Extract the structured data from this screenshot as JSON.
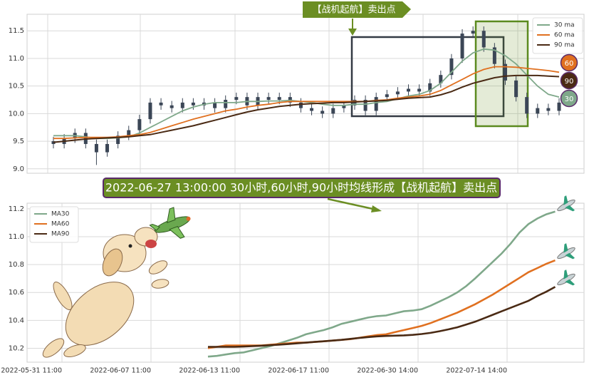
{
  "chart_data": [
    {
      "type": "candlestick",
      "open": [
        9.5,
        9.45,
        9.55,
        9.65,
        9.45,
        9.3,
        9.45,
        9.6,
        9.7,
        9.9,
        10.2,
        10.15,
        10.1,
        10.2,
        10.15,
        10.2,
        10.1,
        10.25,
        10.3,
        10.15,
        10.3,
        10.25,
        10.3,
        10.2,
        10.1,
        10.05,
        10.0,
        10.1,
        10.15,
        10.25,
        10.05,
        10.3,
        10.35,
        10.4,
        10.45,
        10.4,
        10.55,
        10.7,
        11.0,
        11.45,
        11.5,
        11.2,
        10.9,
        10.6,
        10.3,
        10.0,
        10.1,
        10.05
      ],
      "high": [
        9.58,
        9.63,
        9.73,
        9.73,
        9.53,
        9.53,
        9.68,
        9.78,
        9.98,
        10.28,
        10.28,
        10.23,
        10.28,
        10.28,
        10.28,
        10.28,
        10.33,
        10.38,
        10.38,
        10.38,
        10.38,
        10.38,
        10.38,
        10.28,
        10.18,
        10.13,
        10.18,
        10.23,
        10.33,
        10.33,
        10.38,
        10.43,
        10.48,
        10.53,
        10.53,
        10.63,
        10.78,
        11.08,
        11.53,
        11.58,
        11.58,
        11.28,
        10.98,
        10.68,
        10.38,
        10.18,
        10.18,
        10.28
      ],
      "low": [
        9.37,
        9.37,
        9.47,
        9.37,
        9.07,
        9.22,
        9.37,
        9.52,
        9.62,
        9.82,
        10.07,
        10.02,
        10.02,
        10.07,
        10.07,
        10.02,
        10.02,
        10.17,
        10.07,
        10.07,
        10.17,
        10.17,
        10.12,
        10.02,
        9.97,
        9.92,
        9.92,
        10.02,
        10.07,
        9.97,
        9.97,
        10.22,
        10.27,
        10.32,
        10.32,
        10.32,
        10.47,
        10.62,
        10.92,
        11.37,
        11.12,
        10.82,
        10.52,
        10.22,
        9.92,
        9.92,
        9.97,
        9.97
      ],
      "close": [
        9.45,
        9.55,
        9.65,
        9.45,
        9.3,
        9.45,
        9.6,
        9.7,
        9.9,
        10.2,
        10.15,
        10.1,
        10.2,
        10.15,
        10.2,
        10.1,
        10.25,
        10.3,
        10.15,
        10.3,
        10.25,
        10.3,
        10.2,
        10.1,
        10.05,
        10.0,
        10.1,
        10.15,
        10.25,
        10.05,
        10.3,
        10.35,
        10.4,
        10.45,
        10.4,
        10.55,
        10.7,
        11.0,
        11.45,
        11.5,
        11.2,
        10.9,
        10.6,
        10.3,
        10.0,
        10.1,
        10.05,
        10.2
      ],
      "candle_color": "#3b4656",
      "series": [
        {
          "name": "30 ma",
          "badge": "30",
          "color": "#7fa88a",
          "values": [
            9.6,
            9.6,
            9.6,
            9.58,
            9.55,
            9.55,
            9.56,
            9.58,
            9.65,
            9.75,
            9.85,
            9.95,
            10.05,
            10.12,
            10.17,
            10.2,
            10.2,
            10.2,
            10.22,
            10.22,
            10.23,
            10.23,
            10.24,
            10.22,
            10.2,
            10.17,
            10.15,
            10.15,
            10.17,
            10.17,
            10.2,
            10.22,
            10.27,
            10.32,
            10.35,
            10.42,
            10.55,
            10.75,
            10.95,
            11.1,
            11.17,
            11.15,
            11.05,
            10.9,
            10.7,
            10.5,
            10.35,
            10.3
          ]
        },
        {
          "name": "60 ma",
          "badge": "60",
          "color": "#e07020",
          "values": [
            9.55,
            9.55,
            9.56,
            9.57,
            9.57,
            9.57,
            9.58,
            9.6,
            9.62,
            9.66,
            9.72,
            9.78,
            9.84,
            9.9,
            9.95,
            10.0,
            10.05,
            10.08,
            10.12,
            10.15,
            10.17,
            10.2,
            10.22,
            10.22,
            10.22,
            10.22,
            10.22,
            10.22,
            10.22,
            10.22,
            10.24,
            10.25,
            10.28,
            10.3,
            10.32,
            10.35,
            10.42,
            10.52,
            10.62,
            10.72,
            10.8,
            10.85,
            10.85,
            10.84,
            10.82,
            10.8,
            10.78,
            10.75
          ]
        },
        {
          "name": "90 ma",
          "badge": "90",
          "color": "#4a2a14",
          "values": [
            9.48,
            9.5,
            9.52,
            9.54,
            9.55,
            9.56,
            9.57,
            9.58,
            9.6,
            9.62,
            9.66,
            9.7,
            9.74,
            9.78,
            9.83,
            9.88,
            9.93,
            9.98,
            10.03,
            10.07,
            10.1,
            10.13,
            10.15,
            10.17,
            10.18,
            10.19,
            10.2,
            10.2,
            10.21,
            10.22,
            10.23,
            10.24,
            10.26,
            10.28,
            10.29,
            10.3,
            10.34,
            10.4,
            10.48,
            10.55,
            10.6,
            10.65,
            10.68,
            10.69,
            10.69,
            10.69,
            10.68,
            10.67
          ]
        }
      ],
      "ylim": [
        8.92,
        11.8
      ],
      "yticks": [
        {
          "value": 9.0,
          "label": "9.0"
        },
        9.5,
        {
          "value": 10.0,
          "label": "10.0"
        },
        10.5,
        {
          "value": 11.0,
          "label": "11.0"
        },
        11.5
      ],
      "grid": true,
      "legend": "upper right",
      "annotation": "【战机起航】卖出点"
    },
    {
      "type": "line",
      "x": [
        8.2,
        8.7,
        9.2,
        9.7,
        10.2,
        10.7,
        11.2,
        11.7,
        12.2,
        12.7,
        13.2,
        13.7,
        14.2,
        14.7,
        15.2,
        15.7,
        16.2,
        16.7,
        17.2,
        17.7,
        18.2,
        18.7,
        19.2,
        19.7,
        20.2,
        20.7,
        21.2,
        21.7,
        22.2,
        22.7,
        23.2,
        23.7,
        24.2,
        24.7,
        25.2,
        25.7,
        26.2,
        26.7,
        27.2,
        27.7
      ],
      "series": [
        {
          "name": "MA30",
          "color": "#7fa88a",
          "values": [
            10.14,
            10.145,
            10.155,
            10.165,
            10.17,
            10.185,
            10.2,
            10.215,
            10.235,
            10.255,
            10.275,
            10.3,
            10.315,
            10.33,
            10.35,
            10.375,
            10.39,
            10.405,
            10.42,
            10.43,
            10.435,
            10.45,
            10.465,
            10.47,
            10.48,
            10.505,
            10.535,
            10.565,
            10.6,
            10.645,
            10.7,
            10.76,
            10.82,
            10.88,
            10.95,
            11.03,
            11.09,
            11.13,
            11.16,
            11.18
          ]
        },
        {
          "name": "MA60",
          "color": "#e07020",
          "values": [
            10.2,
            10.21,
            10.22,
            10.22,
            10.22,
            10.22,
            10.22,
            10.225,
            10.23,
            10.235,
            10.24,
            10.24,
            10.245,
            10.25,
            10.255,
            10.26,
            10.265,
            10.275,
            10.285,
            10.295,
            10.3,
            10.315,
            10.33,
            10.345,
            10.36,
            10.38,
            10.405,
            10.43,
            10.455,
            10.485,
            10.515,
            10.55,
            10.585,
            10.625,
            10.665,
            10.705,
            10.745,
            10.775,
            10.805,
            10.83
          ]
        },
        {
          "name": "MA90",
          "color": "#4a2a14",
          "values": [
            10.21,
            10.21,
            10.21,
            10.21,
            10.212,
            10.215,
            10.218,
            10.222,
            10.226,
            10.23,
            10.235,
            10.24,
            10.245,
            10.25,
            10.255,
            10.26,
            10.267,
            10.274,
            10.28,
            10.285,
            10.288,
            10.29,
            10.292,
            10.296,
            10.302,
            10.31,
            10.322,
            10.335,
            10.35,
            10.37,
            10.39,
            10.415,
            10.44,
            10.465,
            10.49,
            10.515,
            10.54,
            10.575,
            10.605,
            10.64
          ]
        }
      ],
      "xlim": [
        -1.96,
        29.32
      ],
      "xticks": [
        {
          "value": 0,
          "label": "2022-05-31 11:00"
        },
        {
          "value": 5,
          "label": "2022-06-07 11:00"
        },
        {
          "value": 10,
          "label": "2022-06-13 11:00"
        },
        {
          "value": 15,
          "label": "2022-06-17 11:00"
        },
        {
          "value": 20,
          "label": "2022-06-30 14:00"
        },
        {
          "value": 25,
          "label": "2022-07-14 14:00"
        }
      ],
      "ylim": [
        10.1,
        11.24
      ],
      "yticks": [
        10.2,
        10.4,
        10.6,
        10.8,
        {
          "value": 11.0,
          "label": "11.0"
        },
        11.2
      ],
      "grid": true,
      "legend": "upper left",
      "annotation": "2022-06-27 13:00:00 30小时,60小时,90小时均线形成【战机起航】卖出点"
    }
  ]
}
